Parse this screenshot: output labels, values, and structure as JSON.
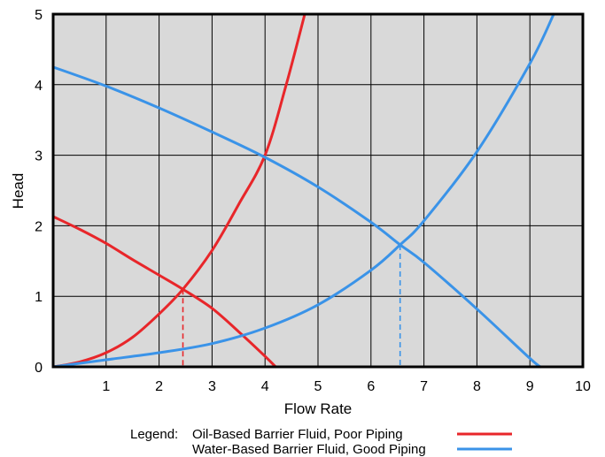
{
  "colors": {
    "oil": "#e8262a",
    "water": "#3a93e8",
    "plot_bg": "#d9d9d9",
    "grid": "#000000"
  },
  "chart_data": {
    "type": "line",
    "title": "",
    "xlabel": "Flow Rate",
    "ylabel": "Head",
    "xlim": [
      0,
      10
    ],
    "ylim": [
      0,
      5
    ],
    "x_ticks": [
      "1",
      "2",
      "3",
      "4",
      "5",
      "6",
      "7",
      "8",
      "9",
      "10"
    ],
    "y_ticks": [
      "0",
      "1",
      "2",
      "3",
      "4",
      "5"
    ],
    "grid": true,
    "legend": {
      "heading": "Legend:",
      "position": "bottom",
      "entries": [
        {
          "label": "Oil-Based Barrier Fluid, Poor Piping",
          "color": "#e8262a"
        },
        {
          "label": "Water-Based Barrier Fluid, Good Piping",
          "color": "#3a93e8"
        }
      ]
    },
    "series": [
      {
        "color": "#e8262a",
        "kind": "pump-curve",
        "x": [
          0,
          0.5,
          1,
          1.5,
          2,
          2.45,
          3,
          3.5,
          4,
          4.2
        ],
        "y": [
          2.13,
          1.95,
          1.75,
          1.52,
          1.3,
          1.1,
          0.83,
          0.5,
          0.15,
          0
        ]
      },
      {
        "color": "#e8262a",
        "kind": "system-curve",
        "x": [
          0,
          0.5,
          1,
          1.5,
          2,
          2.45,
          3,
          3.5,
          4,
          4.4,
          4.75
        ],
        "y": [
          0,
          0.07,
          0.2,
          0.42,
          0.75,
          1.1,
          1.65,
          2.3,
          3.0,
          4.0,
          5.0
        ]
      },
      {
        "color": "#3a93e8",
        "kind": "pump-curve",
        "x": [
          0,
          1,
          2,
          3,
          4,
          5,
          6,
          6.55,
          7,
          8,
          9,
          9.2
        ],
        "y": [
          4.25,
          3.98,
          3.67,
          3.33,
          2.97,
          2.55,
          2.05,
          1.73,
          1.48,
          0.82,
          0.12,
          0
        ]
      },
      {
        "color": "#3a93e8",
        "kind": "system-curve",
        "x": [
          0,
          1,
          2,
          3,
          4,
          5,
          6,
          6.55,
          7,
          8,
          9,
          9.45
        ],
        "y": [
          0,
          0.1,
          0.2,
          0.33,
          0.55,
          0.88,
          1.37,
          1.73,
          2.07,
          3.05,
          4.3,
          5.0
        ]
      }
    ],
    "operating_points": [
      {
        "x": 2.45,
        "y": 1.1,
        "color": "#e8262a",
        "style": "dashed"
      },
      {
        "x": 6.55,
        "y": 1.73,
        "color": "#3a93e8",
        "style": "dashed"
      }
    ]
  }
}
